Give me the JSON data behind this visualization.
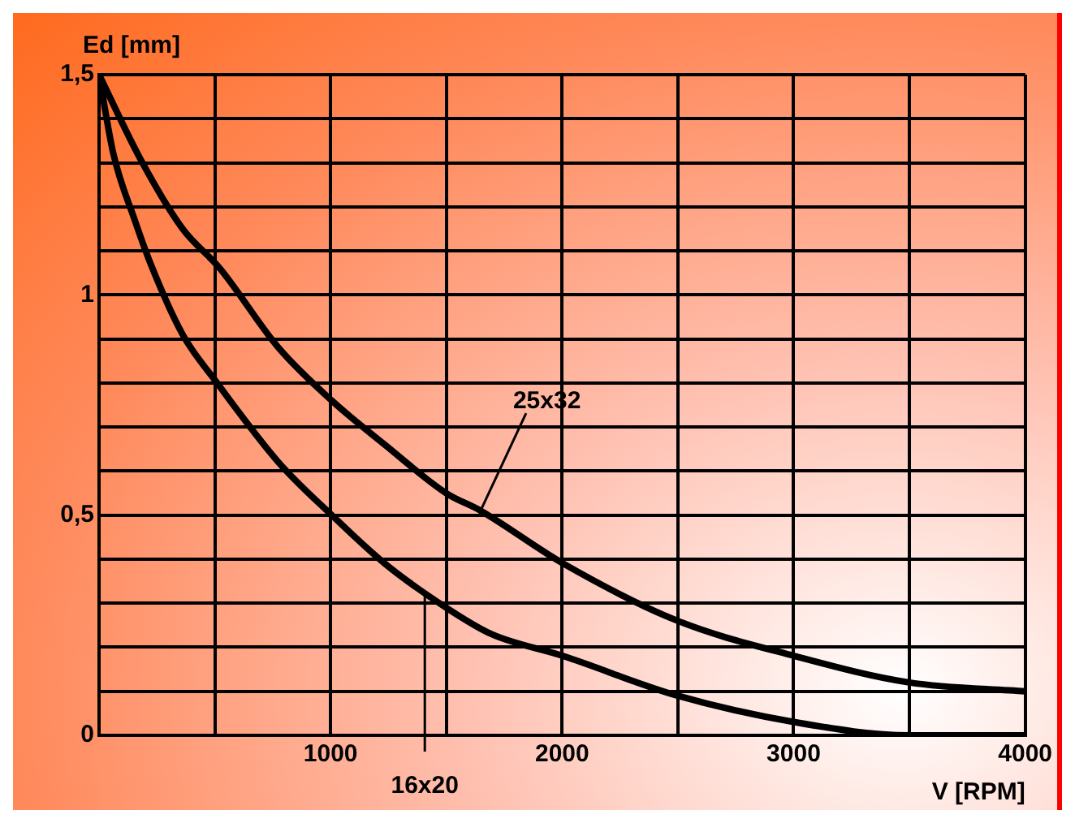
{
  "chart_data": {
    "type": "line",
    "xlabel": "V [RPM]",
    "ylabel": "Ed [mm]",
    "series": [
      {
        "color": "#000000",
        "x": [
          0,
          177,
          361,
          522,
          775,
          1005,
          1234,
          1499,
          1648,
          2005,
          2499,
          3005,
          3499,
          4000
        ],
        "values": [
          1.5,
          1.31,
          1.15,
          1.06,
          0.88,
          0.76,
          0.66,
          0.55,
          0.51,
          0.39,
          0.26,
          0.18,
          0.12,
          0.1
        ]
      },
      {
        "color": "#000000",
        "x": [
          0,
          62,
          154,
          223,
          361,
          510,
          775,
          1005,
          1234,
          1499,
          1694,
          2005,
          2499,
          3005,
          3499,
          4000
        ],
        "values": [
          1.5,
          1.32,
          1.17,
          1.07,
          0.91,
          0.8,
          0.62,
          0.5,
          0.39,
          0.29,
          0.23,
          0.18,
          0.09,
          0.03,
          0.0,
          0.0
        ]
      }
    ],
    "xlim": [
      0,
      4000
    ],
    "xticks": [
      {
        "value": 0,
        "label": null
      },
      {
        "value": 500,
        "label": null
      },
      1000,
      {
        "value": 1500,
        "label": null
      },
      2000,
      {
        "value": 2500,
        "label": null
      },
      3000,
      {
        "value": 3500,
        "label": null
      },
      4000
    ],
    "ylim": [
      0,
      1.5
    ],
    "yticks": [
      0,
      {
        "value": 0.1,
        "label": null
      },
      {
        "value": 0.2,
        "label": null
      },
      {
        "value": 0.3,
        "label": null
      },
      {
        "value": 0.4,
        "label": null
      },
      {
        "value": 0.5,
        "label": "0,5"
      },
      {
        "value": 0.6,
        "label": null
      },
      {
        "value": 0.7,
        "label": null
      },
      {
        "value": 0.8,
        "label": null
      },
      {
        "value": 0.9,
        "label": null
      },
      1,
      {
        "value": 1.1,
        "label": null
      },
      {
        "value": 1.2,
        "label": null
      },
      {
        "value": 1.3,
        "label": null
      },
      {
        "value": 1.4,
        "label": null
      },
      {
        "value": 1.5,
        "label": "1,5"
      }
    ],
    "annotations": [
      {
        "text": "25x32",
        "x": 1648,
        "y": 0.51
      },
      {
        "text": "16x20",
        "x": 1407,
        "y": 0.32
      }
    ],
    "grid": true,
    "legend": false,
    "marker": "none",
    "line_style": "solid"
  }
}
